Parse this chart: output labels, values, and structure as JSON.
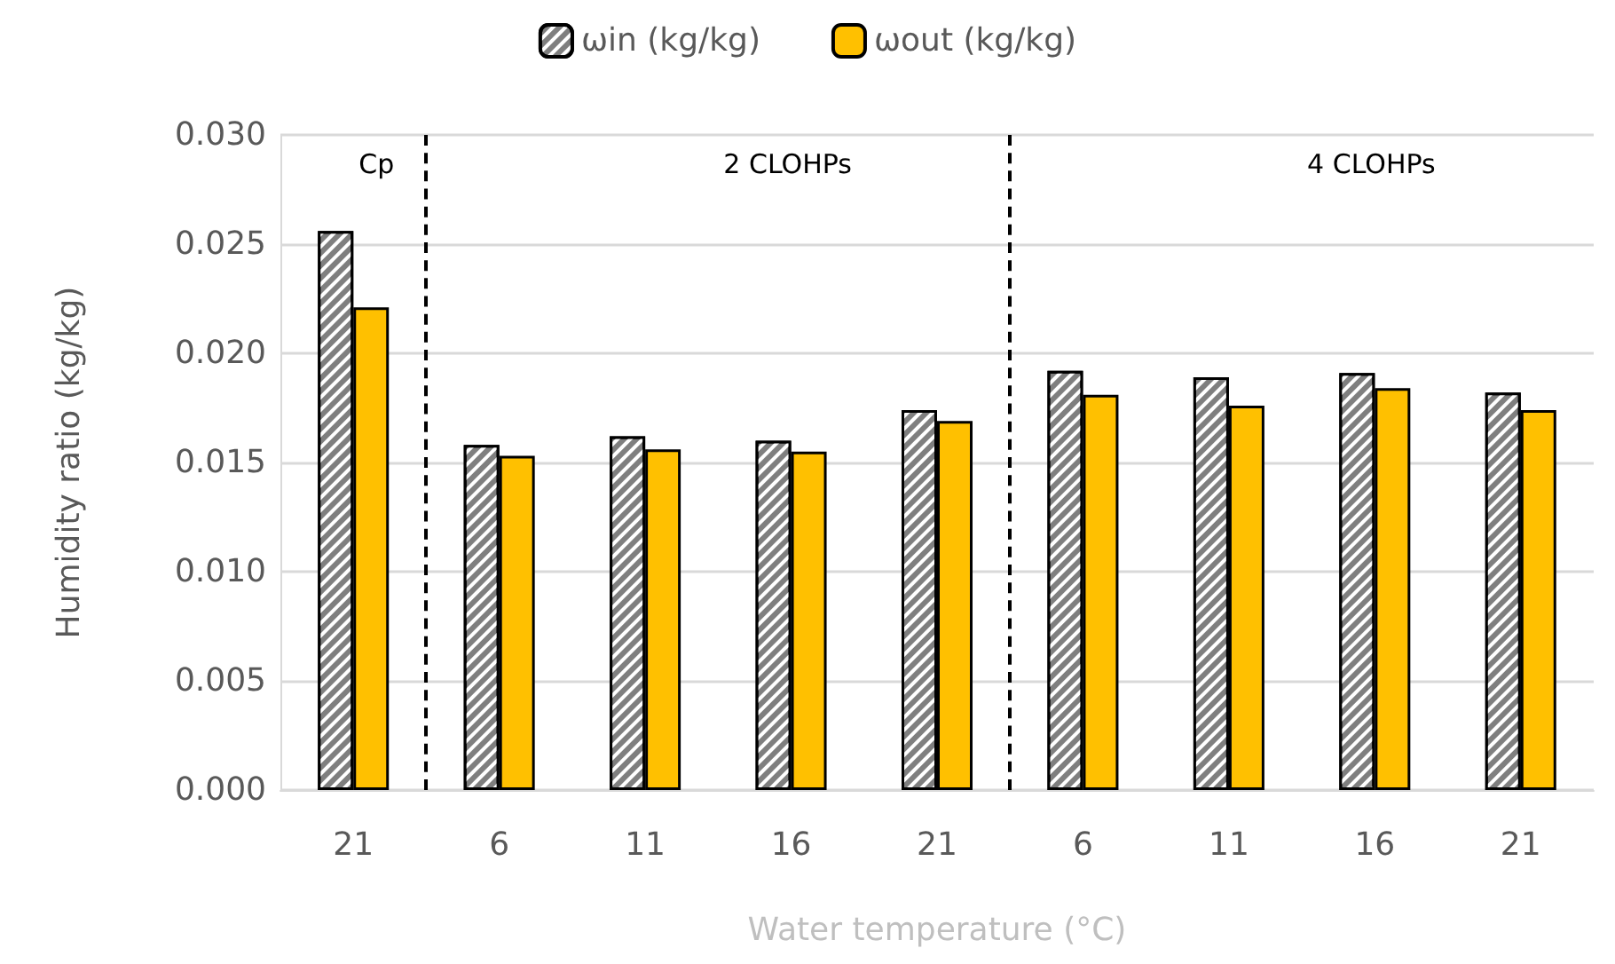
{
  "chart_data": {
    "type": "bar",
    "xlabel": "Water temperature (°C)",
    "ylabel": "Humidity ratio (kg/kg)",
    "categories": [
      "21",
      "6",
      "11",
      "16",
      "21",
      "6",
      "11",
      "16",
      "21"
    ],
    "series": [
      {
        "name": "ωin (kg/kg)",
        "color": "#7f7f7f",
        "values": [
          0.0256,
          0.0158,
          0.0162,
          0.016,
          0.0174,
          0.0192,
          0.0189,
          0.0191,
          0.0182
        ]
      },
      {
        "name": "ωout (kg/kg)",
        "color": "#ffc000",
        "values": [
          0.0221,
          0.0153,
          0.0156,
          0.0155,
          0.0169,
          0.0181,
          0.0176,
          0.0184,
          0.0174
        ]
      }
    ],
    "ylim": [
      0,
      0.03
    ],
    "yticks": [
      {
        "value": 0,
        "label": "0.000"
      },
      {
        "value": 0.005,
        "label": "0.005"
      },
      {
        "value": 0.01,
        "label": "0.010"
      },
      {
        "value": 0.015,
        "label": "0.015"
      },
      {
        "value": 0.02,
        "label": "0.020"
      },
      {
        "value": 0.025,
        "label": "0.025"
      },
      {
        "value": 0.03,
        "label": "0.030"
      }
    ],
    "annotations": [
      "Cp",
      "2 CLOHPs",
      "4 CLOHPs"
    ],
    "grid": "y",
    "legend": "top"
  }
}
